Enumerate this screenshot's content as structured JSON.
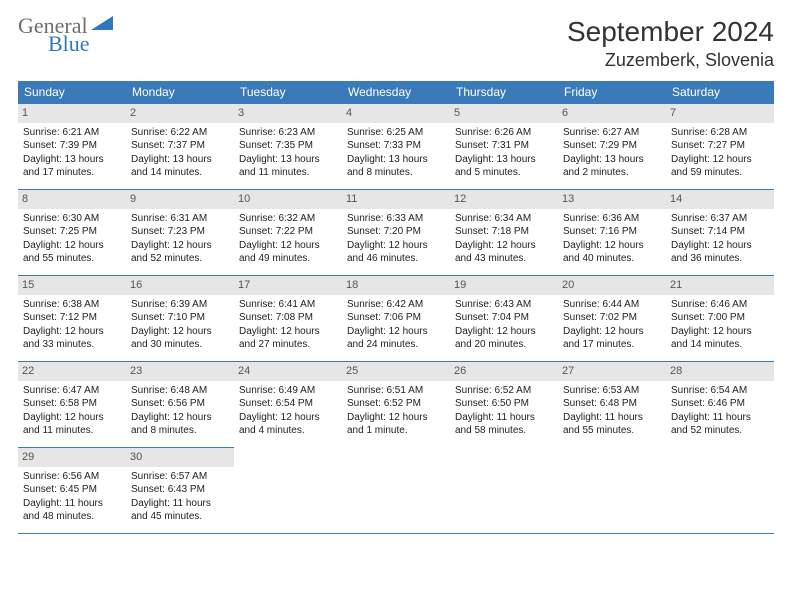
{
  "logo": {
    "general": "General",
    "blue": "Blue"
  },
  "title": "September 2024",
  "location": "Zuzemberk, Slovenia",
  "colors": {
    "header_bg": "#3a7ab8",
    "header_text": "#ffffff",
    "daynum_bg": "#e6e6e6",
    "daynum_text": "#555555",
    "text": "#222222",
    "title_text": "#333333",
    "logo_gray": "#6c6f72",
    "logo_blue": "#2f78bd",
    "border": "#3a7ab8"
  },
  "typography": {
    "title_fontsize": 28,
    "location_fontsize": 18,
    "dayhead_fontsize": 12,
    "daynum_fontsize": 11,
    "cell_fontsize": 10,
    "logo_fontsize": 22
  },
  "calendar": {
    "day_names": [
      "Sunday",
      "Monday",
      "Tuesday",
      "Wednesday",
      "Thursday",
      "Friday",
      "Saturday"
    ],
    "rows": [
      [
        {
          "num": "1",
          "sunrise": "Sunrise: 6:21 AM",
          "sunset": "Sunset: 7:39 PM",
          "daylight": "Daylight: 13 hours and 17 minutes."
        },
        {
          "num": "2",
          "sunrise": "Sunrise: 6:22 AM",
          "sunset": "Sunset: 7:37 PM",
          "daylight": "Daylight: 13 hours and 14 minutes."
        },
        {
          "num": "3",
          "sunrise": "Sunrise: 6:23 AM",
          "sunset": "Sunset: 7:35 PM",
          "daylight": "Daylight: 13 hours and 11 minutes."
        },
        {
          "num": "4",
          "sunrise": "Sunrise: 6:25 AM",
          "sunset": "Sunset: 7:33 PM",
          "daylight": "Daylight: 13 hours and 8 minutes."
        },
        {
          "num": "5",
          "sunrise": "Sunrise: 6:26 AM",
          "sunset": "Sunset: 7:31 PM",
          "daylight": "Daylight: 13 hours and 5 minutes."
        },
        {
          "num": "6",
          "sunrise": "Sunrise: 6:27 AM",
          "sunset": "Sunset: 7:29 PM",
          "daylight": "Daylight: 13 hours and 2 minutes."
        },
        {
          "num": "7",
          "sunrise": "Sunrise: 6:28 AM",
          "sunset": "Sunset: 7:27 PM",
          "daylight": "Daylight: 12 hours and 59 minutes."
        }
      ],
      [
        {
          "num": "8",
          "sunrise": "Sunrise: 6:30 AM",
          "sunset": "Sunset: 7:25 PM",
          "daylight": "Daylight: 12 hours and 55 minutes."
        },
        {
          "num": "9",
          "sunrise": "Sunrise: 6:31 AM",
          "sunset": "Sunset: 7:23 PM",
          "daylight": "Daylight: 12 hours and 52 minutes."
        },
        {
          "num": "10",
          "sunrise": "Sunrise: 6:32 AM",
          "sunset": "Sunset: 7:22 PM",
          "daylight": "Daylight: 12 hours and 49 minutes."
        },
        {
          "num": "11",
          "sunrise": "Sunrise: 6:33 AM",
          "sunset": "Sunset: 7:20 PM",
          "daylight": "Daylight: 12 hours and 46 minutes."
        },
        {
          "num": "12",
          "sunrise": "Sunrise: 6:34 AM",
          "sunset": "Sunset: 7:18 PM",
          "daylight": "Daylight: 12 hours and 43 minutes."
        },
        {
          "num": "13",
          "sunrise": "Sunrise: 6:36 AM",
          "sunset": "Sunset: 7:16 PM",
          "daylight": "Daylight: 12 hours and 40 minutes."
        },
        {
          "num": "14",
          "sunrise": "Sunrise: 6:37 AM",
          "sunset": "Sunset: 7:14 PM",
          "daylight": "Daylight: 12 hours and 36 minutes."
        }
      ],
      [
        {
          "num": "15",
          "sunrise": "Sunrise: 6:38 AM",
          "sunset": "Sunset: 7:12 PM",
          "daylight": "Daylight: 12 hours and 33 minutes."
        },
        {
          "num": "16",
          "sunrise": "Sunrise: 6:39 AM",
          "sunset": "Sunset: 7:10 PM",
          "daylight": "Daylight: 12 hours and 30 minutes."
        },
        {
          "num": "17",
          "sunrise": "Sunrise: 6:41 AM",
          "sunset": "Sunset: 7:08 PM",
          "daylight": "Daylight: 12 hours and 27 minutes."
        },
        {
          "num": "18",
          "sunrise": "Sunrise: 6:42 AM",
          "sunset": "Sunset: 7:06 PM",
          "daylight": "Daylight: 12 hours and 24 minutes."
        },
        {
          "num": "19",
          "sunrise": "Sunrise: 6:43 AM",
          "sunset": "Sunset: 7:04 PM",
          "daylight": "Daylight: 12 hours and 20 minutes."
        },
        {
          "num": "20",
          "sunrise": "Sunrise: 6:44 AM",
          "sunset": "Sunset: 7:02 PM",
          "daylight": "Daylight: 12 hours and 17 minutes."
        },
        {
          "num": "21",
          "sunrise": "Sunrise: 6:46 AM",
          "sunset": "Sunset: 7:00 PM",
          "daylight": "Daylight: 12 hours and 14 minutes."
        }
      ],
      [
        {
          "num": "22",
          "sunrise": "Sunrise: 6:47 AM",
          "sunset": "Sunset: 6:58 PM",
          "daylight": "Daylight: 12 hours and 11 minutes."
        },
        {
          "num": "23",
          "sunrise": "Sunrise: 6:48 AM",
          "sunset": "Sunset: 6:56 PM",
          "daylight": "Daylight: 12 hours and 8 minutes."
        },
        {
          "num": "24",
          "sunrise": "Sunrise: 6:49 AM",
          "sunset": "Sunset: 6:54 PM",
          "daylight": "Daylight: 12 hours and 4 minutes."
        },
        {
          "num": "25",
          "sunrise": "Sunrise: 6:51 AM",
          "sunset": "Sunset: 6:52 PM",
          "daylight": "Daylight: 12 hours and 1 minute."
        },
        {
          "num": "26",
          "sunrise": "Sunrise: 6:52 AM",
          "sunset": "Sunset: 6:50 PM",
          "daylight": "Daylight: 11 hours and 58 minutes."
        },
        {
          "num": "27",
          "sunrise": "Sunrise: 6:53 AM",
          "sunset": "Sunset: 6:48 PM",
          "daylight": "Daylight: 11 hours and 55 minutes."
        },
        {
          "num": "28",
          "sunrise": "Sunrise: 6:54 AM",
          "sunset": "Sunset: 6:46 PM",
          "daylight": "Daylight: 11 hours and 52 minutes."
        }
      ],
      [
        {
          "num": "29",
          "sunrise": "Sunrise: 6:56 AM",
          "sunset": "Sunset: 6:45 PM",
          "daylight": "Daylight: 11 hours and 48 minutes."
        },
        {
          "num": "30",
          "sunrise": "Sunrise: 6:57 AM",
          "sunset": "Sunset: 6:43 PM",
          "daylight": "Daylight: 11 hours and 45 minutes."
        },
        null,
        null,
        null,
        null,
        null
      ]
    ]
  }
}
